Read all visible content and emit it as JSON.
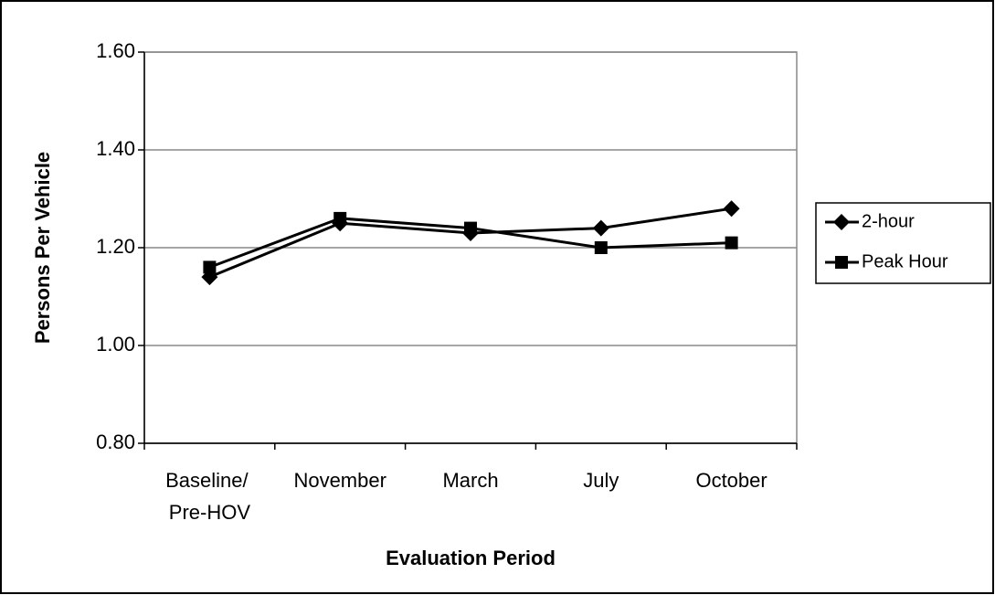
{
  "chart_data": {
    "type": "line",
    "x_label": "Evaluation Period",
    "y_label": "Persons Per Vehicle",
    "categories": [
      "Baseline/ Pre-HOV",
      "November",
      "March",
      "July",
      "October"
    ],
    "series": [
      {
        "name": "2-hour",
        "color": "#000000",
        "marker": "diamond",
        "values": [
          1.14,
          1.25,
          1.23,
          1.24,
          1.28
        ]
      },
      {
        "name": "Peak Hour",
        "color": "#000000",
        "marker": "square",
        "values": [
          1.16,
          1.26,
          1.24,
          1.2,
          1.21
        ]
      }
    ],
    "ylim": [
      0.8,
      1.6
    ],
    "yticks": [
      {
        "value": 0.8,
        "label": "0.80"
      },
      {
        "value": 1.0,
        "label": "1.00"
      },
      {
        "value": 1.2,
        "label": "1.20"
      },
      {
        "value": 1.4,
        "label": "1.40"
      },
      {
        "value": 1.6,
        "label": "1.60"
      }
    ],
    "grid": true,
    "legend_position": "right"
  }
}
